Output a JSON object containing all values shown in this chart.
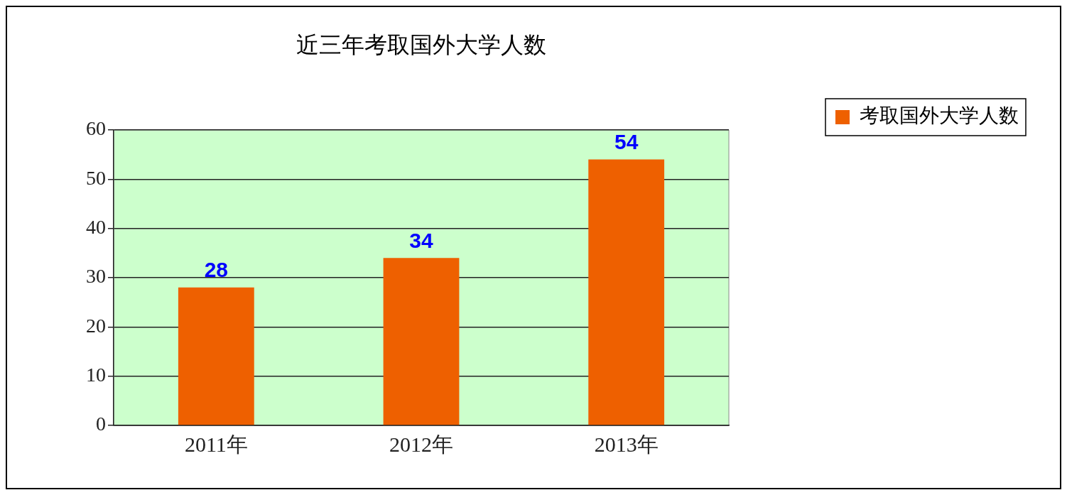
{
  "chart_data": {
    "type": "bar",
    "title": "近三年考取国外大学人数",
    "categories": [
      "2011年",
      "2012年",
      "2013年"
    ],
    "series": [
      {
        "name": "考取国外大学人数",
        "color": "#ee6000",
        "values": [
          28,
          34,
          54
        ]
      }
    ],
    "ylim": [
      0,
      60
    ],
    "yticks": [
      0,
      10,
      20,
      30,
      40,
      50,
      60
    ],
    "grid": "y",
    "legend": "right",
    "data_labels": true
  }
}
